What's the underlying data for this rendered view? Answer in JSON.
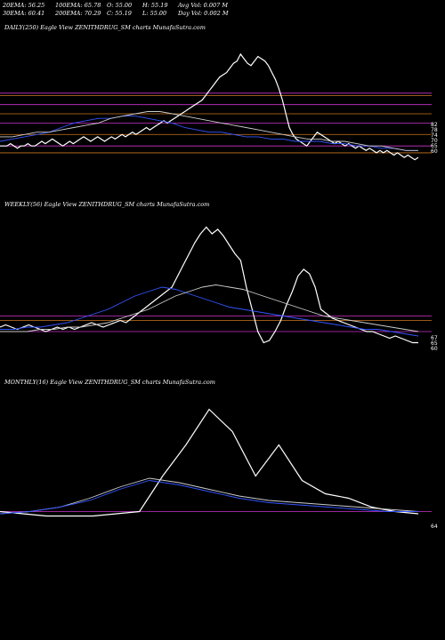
{
  "header": {
    "ema20": "20EMA: 56.25",
    "ema100": "100EMA: 65.78",
    "open": "O: 55.00",
    "high": "H: 55.19",
    "avgvol": "Avg Vol: 0.007  M",
    "ema30": "30EMA: 60.41",
    "ema200": "200EMA: 70.29",
    "close": "C: 55.19",
    "low": "L: 55.00",
    "dayvol": "Day Vol: 0.002  M"
  },
  "colors": {
    "background": "#000000",
    "price": "#ffffff",
    "ema_blue": "#3355ff",
    "ma_light": "#cccccc",
    "ma_brown": "#b07a30",
    "support_magenta": "#cc33cc",
    "support_orange": "#cc7722"
  },
  "chart_data": [
    {
      "type": "line",
      "label": "DAILY(250) Eagle   View  ZENITHDRUG_SM charts MunafaSutra.com",
      "right_labels": [
        "82",
        "78",
        "74",
        "70",
        "65",
        "60"
      ],
      "series": [
        {
          "values": [
            60,
            60,
            60,
            61,
            60,
            59,
            60,
            60,
            61,
            60,
            60,
            61,
            62,
            61,
            62,
            63,
            62,
            61,
            60,
            61,
            62,
            61,
            62,
            63,
            64,
            63,
            62,
            63,
            64,
            63,
            62,
            63,
            64,
            63,
            64,
            65,
            64,
            65,
            66,
            65,
            66,
            67,
            68,
            67,
            68,
            69,
            70,
            71,
            70,
            71,
            72,
            73,
            74,
            75,
            76,
            77,
            78,
            79,
            80,
            82,
            84,
            86,
            88,
            90,
            91,
            92,
            94,
            96,
            97,
            100,
            98,
            96,
            95,
            97,
            99,
            98,
            97,
            95,
            92,
            89,
            85,
            80,
            74,
            68,
            65,
            63,
            62,
            61,
            60,
            62,
            64,
            66,
            65,
            64,
            63,
            62,
            61,
            62,
            61,
            60,
            61,
            60,
            59,
            60,
            59,
            58,
            59,
            58,
            57,
            58,
            57,
            58,
            57,
            56,
            57,
            56,
            55,
            56,
            55,
            54,
            55
          ]
        },
        {
          "values": [
            62,
            63,
            64,
            65,
            66,
            68,
            70,
            71,
            72,
            72,
            73,
            73,
            72,
            71,
            70,
            68,
            67,
            66,
            66,
            65,
            64,
            64,
            63,
            63,
            62,
            62,
            62,
            61,
            61,
            60,
            60,
            59,
            59,
            58,
            58
          ]
        },
        {
          "values": [
            64,
            64,
            65,
            66,
            66,
            67,
            68,
            69,
            70,
            72,
            73,
            74,
            75,
            75,
            74,
            73,
            72,
            71,
            70,
            69,
            68,
            67,
            66,
            65,
            64,
            63,
            63,
            62,
            62,
            61,
            60,
            60,
            59,
            58,
            58
          ]
        }
      ],
      "support_lines": [
        83,
        82,
        78,
        74,
        70,
        65,
        60,
        57
      ]
    },
    {
      "type": "line",
      "label": "WEEKLY(56) Eagle   View  ZENITHDRUG_SM charts MunafaSutra.com",
      "right_labels": [
        "67",
        "65",
        "60"
      ],
      "series": [
        {
          "values": [
            62,
            63,
            62,
            61,
            62,
            63,
            62,
            61,
            60,
            61,
            62,
            61,
            62,
            61,
            62,
            63,
            64,
            63,
            62,
            63,
            64,
            65,
            64,
            66,
            68,
            70,
            72,
            74,
            76,
            78,
            80,
            85,
            90,
            95,
            100,
            104,
            107,
            104,
            106,
            103,
            99,
            95,
            92,
            80,
            70,
            60,
            55,
            56,
            60,
            65,
            72,
            78,
            85,
            88,
            86,
            80,
            70,
            68,
            66,
            65,
            64,
            63,
            62,
            61,
            60,
            60,
            59,
            58,
            57,
            58,
            57,
            56,
            55,
            55
          ]
        },
        {
          "values": [
            61,
            61,
            62,
            62,
            63,
            64,
            66,
            68,
            70,
            73,
            76,
            78,
            80,
            79,
            77,
            75,
            73,
            71,
            70,
            69,
            68,
            67,
            66,
            65,
            64,
            63,
            62,
            61,
            61,
            60,
            59,
            58
          ]
        },
        {
          "values": [
            60,
            60,
            60,
            61,
            61,
            62,
            62,
            63,
            64,
            66,
            68,
            70,
            73,
            76,
            78,
            80,
            81,
            80,
            79,
            77,
            75,
            73,
            71,
            69,
            67,
            66,
            65,
            64,
            63,
            62,
            61,
            60
          ]
        }
      ],
      "support_lines": [
        67,
        65,
        60
      ]
    },
    {
      "type": "line",
      "label": "MONTHLY(16) Eagle   View  ZENITHDRUG_SM charts MunafaSutra.com",
      "right_labels": [
        "64"
      ],
      "series": [
        {
          "values": [
            64,
            63,
            62,
            62,
            62,
            63,
            64,
            80,
            94,
            110,
            100,
            80,
            94,
            78,
            72,
            70,
            66,
            64,
            63
          ]
        },
        {
          "values": [
            63,
            64,
            66,
            70,
            75,
            79,
            77,
            74,
            71,
            69,
            68,
            67,
            66,
            65,
            64
          ]
        },
        {
          "values": [
            63,
            64,
            66,
            69,
            74,
            78,
            76,
            73,
            70,
            68,
            67,
            66,
            65,
            64,
            64
          ]
        }
      ],
      "support_lines": [
        64
      ]
    }
  ]
}
